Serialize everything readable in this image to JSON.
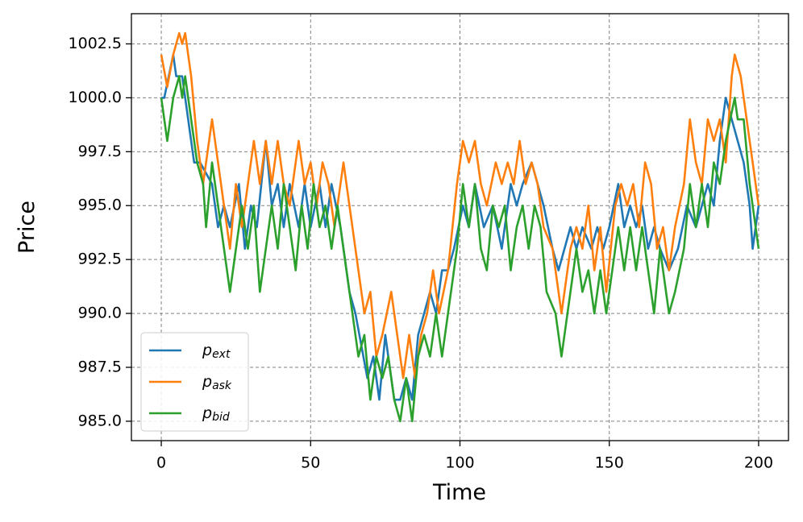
{
  "chart_data": {
    "type": "line",
    "x_label": "Time",
    "y_label": "Price",
    "xlim": [
      -10,
      210
    ],
    "ylim": [
      984.1,
      1003.9
    ],
    "xticks": [
      0,
      50,
      100,
      150,
      200
    ],
    "yticks": [
      {
        "value": 985,
        "label": "985.0"
      },
      987.5,
      {
        "value": 990,
        "label": "990.0"
      },
      992.5,
      {
        "value": 995,
        "label": "995.0"
      },
      997.5,
      {
        "value": 1000,
        "label": "1000.0"
      },
      1002.5
    ],
    "grid": true,
    "legend": "lower left",
    "series": [
      {
        "name": "pext",
        "color": "#1f77b4",
        "x": [
          0,
          1,
          4,
          5,
          7,
          11,
          13,
          17,
          19,
          21,
          23,
          26,
          28,
          30,
          32,
          35,
          37,
          39,
          41,
          43,
          46,
          48,
          50,
          53,
          55,
          57,
          60,
          63,
          65,
          69,
          71,
          73,
          75,
          78,
          80,
          82,
          84,
          86,
          88,
          90,
          92,
          94,
          96,
          98,
          101,
          103,
          105,
          108,
          111,
          114,
          117,
          119,
          121,
          124,
          126,
          128,
          131,
          133,
          135,
          137,
          139,
          141,
          144,
          146,
          148,
          150,
          153,
          155,
          157,
          159,
          161,
          163,
          165,
          167,
          170,
          173,
          176,
          179,
          181,
          183,
          185,
          187,
          189,
          191,
          193,
          195,
          197,
          198,
          200
        ],
        "values": [
          1000,
          1000,
          1002,
          1001,
          1001,
          997,
          997,
          996,
          994,
          995,
          994,
          996,
          993,
          995,
          994,
          998,
          995,
          996,
          994,
          996,
          994,
          996,
          994,
          996,
          994,
          996,
          994,
          991,
          990,
          987,
          988,
          986,
          989,
          986,
          986,
          987,
          986,
          989,
          990,
          991,
          990,
          992,
          992,
          993,
          995,
          994,
          996,
          994,
          995,
          993,
          996,
          995,
          996,
          997,
          996,
          995,
          993,
          992,
          993,
          994,
          993,
          994,
          993,
          994,
          993,
          994,
          996,
          994,
          995,
          994,
          995,
          993,
          994,
          993,
          992,
          993,
          995,
          994,
          995,
          996,
          995,
          998,
          1000,
          999,
          998,
          997,
          995,
          993,
          995
        ]
      },
      {
        "name": "pask",
        "color": "#ff7f0e",
        "x": [
          0,
          2,
          4,
          6,
          7,
          8,
          10,
          12,
          14,
          17,
          19,
          21,
          23,
          25,
          27,
          29,
          31,
          33,
          35,
          37,
          39,
          41,
          43,
          46,
          48,
          50,
          52,
          54,
          56,
          58,
          61,
          63,
          66,
          68,
          70,
          72,
          74,
          77,
          79,
          81,
          83,
          85,
          87,
          89,
          91,
          93,
          96,
          99,
          101,
          103,
          105,
          107,
          109,
          112,
          114,
          116,
          118,
          120,
          122,
          124,
          126,
          128,
          131,
          134,
          137,
          139,
          141,
          143,
          145,
          147,
          149,
          152,
          154,
          156,
          158,
          160,
          162,
          164,
          166,
          168,
          170,
          172,
          175,
          177,
          179,
          181,
          183,
          185,
          187,
          189,
          191,
          192,
          194,
          196,
          198,
          200
        ],
        "values": [
          1002,
          1000.5,
          1002,
          1003,
          1002.5,
          1003,
          1001,
          998,
          996,
          999,
          997,
          995,
          993,
          996,
          994,
          996,
          998,
          996,
          998,
          996,
          998,
          996,
          995,
          998,
          996,
          997,
          995,
          997,
          996,
          994,
          997,
          995,
          992,
          990,
          991,
          988,
          989,
          991,
          989,
          987,
          989,
          987,
          989,
          990,
          992,
          990,
          992,
          996,
          998,
          997,
          998,
          996,
          995,
          997,
          996,
          997,
          996,
          998,
          996,
          997,
          996,
          994,
          993,
          990,
          993,
          994,
          993,
          995,
          992,
          994,
          991,
          995,
          996,
          995,
          996,
          994,
          997,
          996,
          993,
          994,
          992,
          994,
          996,
          999,
          997,
          996,
          999,
          998,
          999,
          997,
          1001,
          1002,
          1001,
          999,
          997,
          995
        ]
      },
      {
        "name": "pbid",
        "color": "#2ca02c",
        "x": [
          0,
          2,
          4,
          6,
          7,
          8,
          10,
          12,
          14,
          15,
          17,
          19,
          21,
          23,
          25,
          27,
          29,
          31,
          33,
          35,
          37,
          39,
          41,
          43,
          45,
          47,
          49,
          51,
          53,
          55,
          57,
          59,
          62,
          64,
          66,
          68,
          70,
          72,
          74,
          76,
          78,
          80,
          82,
          84,
          86,
          88,
          90,
          92,
          94,
          96,
          99,
          101,
          103,
          105,
          107,
          109,
          111,
          113,
          115,
          117,
          119,
          121,
          123,
          125,
          127,
          129,
          132,
          134,
          137,
          139,
          141,
          143,
          145,
          147,
          149,
          151,
          153,
          155,
          157,
          159,
          161,
          163,
          165,
          167,
          170,
          172,
          175,
          177,
          179,
          181,
          183,
          185,
          187,
          189,
          192,
          193,
          195,
          197,
          200
        ],
        "values": [
          1000,
          998,
          1000,
          1001,
          1000,
          1001,
          999,
          997,
          996,
          994,
          997,
          995,
          993,
          991,
          993,
          995,
          993,
          995,
          991,
          993,
          995,
          993,
          996,
          994,
          992,
          995,
          993,
          996,
          994,
          995,
          993,
          995,
          992,
          990,
          988,
          989,
          986,
          988,
          987,
          988,
          986,
          985,
          987,
          985,
          988,
          989,
          988,
          990,
          988,
          990,
          993,
          996,
          994,
          996,
          993,
          992,
          995,
          994,
          995,
          992,
          994,
          995,
          993,
          995,
          994,
          991,
          990,
          988,
          991,
          993,
          991,
          992,
          990,
          992,
          990,
          992,
          994,
          992,
          994,
          992,
          994,
          992,
          990,
          993,
          990,
          991,
          993,
          996,
          994,
          996,
          994,
          997,
          996,
          998,
          1000,
          999,
          999,
          996,
          993
        ]
      }
    ]
  }
}
